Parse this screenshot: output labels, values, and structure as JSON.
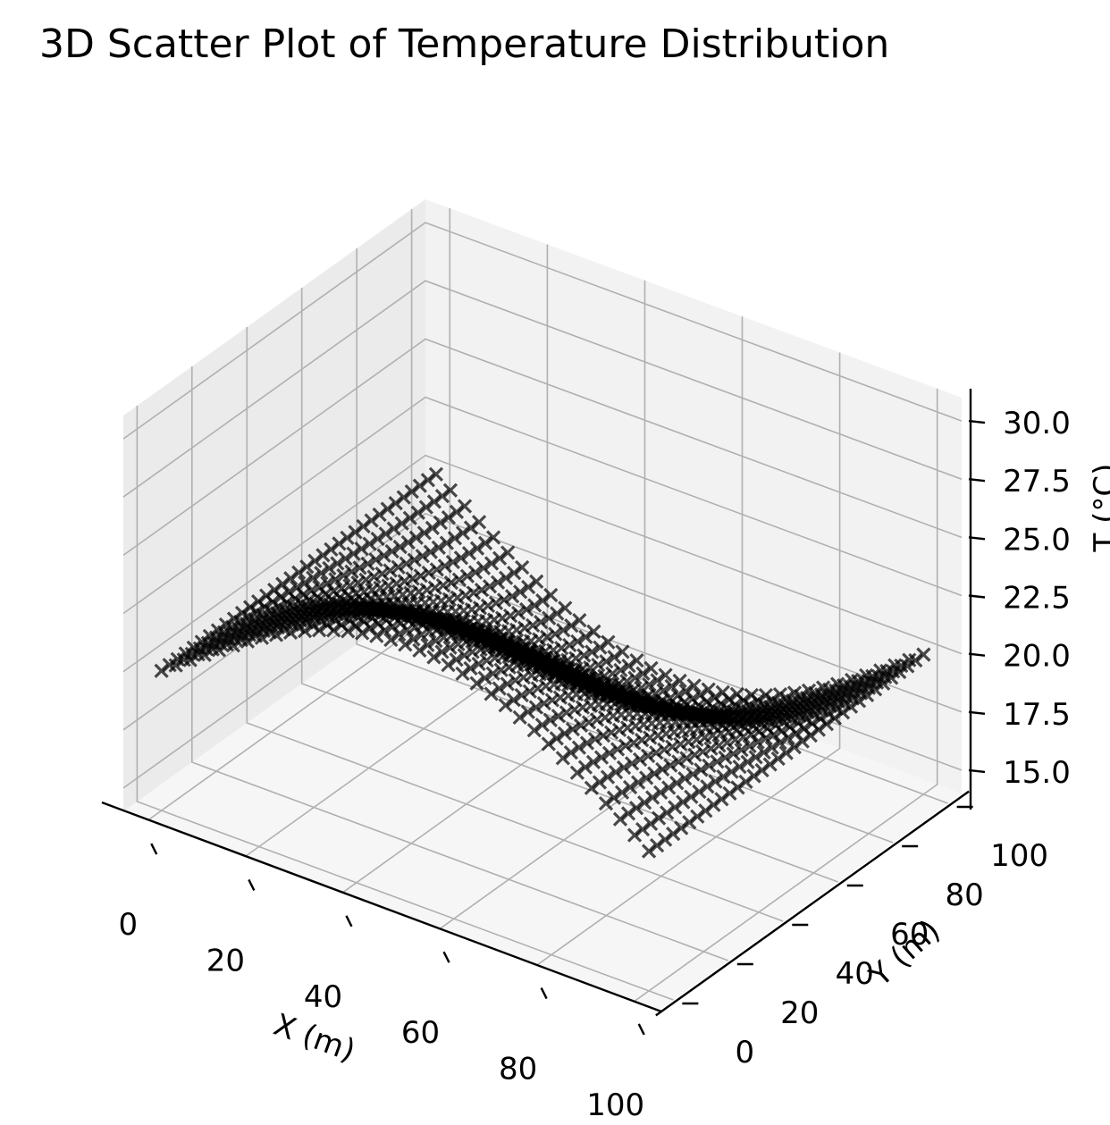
{
  "chart_data": {
    "type": "scatter",
    "projection": "3d",
    "title": "3D Scatter Plot of Temperature Distribution",
    "xlabel": "X (m)",
    "ylabel": "Y (m)",
    "zlabel": "T (°C)",
    "xlim": [
      -5,
      105
    ],
    "ylim": [
      -5,
      105
    ],
    "zlim": [
      14,
      31
    ],
    "x_ticks": [
      0,
      20,
      40,
      60,
      80,
      100
    ],
    "y_ticks": [
      0,
      20,
      40,
      60,
      80,
      100
    ],
    "z_ticks": [
      "15.0",
      "17.5",
      "20.0",
      "22.5",
      "25.0",
      "27.5",
      "30.0"
    ],
    "grid": true,
    "marker": "x",
    "marker_color": "#000000",
    "marker_alpha": 0.7,
    "series": [
      {
        "description_of_points": "grid over X 0–100 m, Y 0–100 m",
        "x_range": [
          0,
          100
        ],
        "y_range": [
          0,
          100
        ],
        "t_range": [
          15,
          25
        ]
      }
    ]
  },
  "colors": {
    "pane_left": "#ebebeb",
    "pane_right": "#f2f2f2",
    "pane_floor": "#f6f6f6",
    "grid": "#b0b0b0"
  }
}
